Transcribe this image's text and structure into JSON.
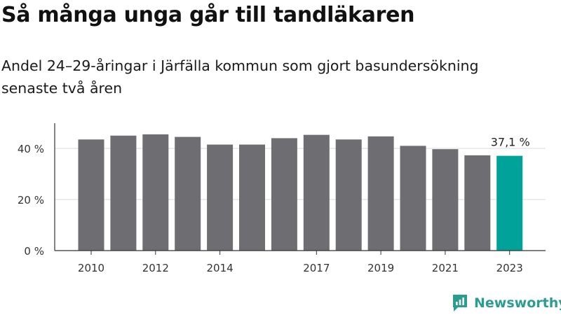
{
  "chart_data": {
    "type": "bar",
    "title": "Så många unga går till tandläkaren",
    "subtitle": "Andel 24–29-åringar i Järfälla kommun som gjort basundersökning senaste två åren",
    "categories": [
      "2010",
      "2011",
      "2012",
      "2013",
      "2014",
      "2015",
      "2016",
      "2017",
      "2018",
      "2019",
      "2020",
      "2021",
      "2022",
      "2023"
    ],
    "x_tick_labels": [
      "2010",
      "",
      "2012",
      "",
      "2014",
      "",
      "",
      "2017",
      "",
      "2019",
      "",
      "2021",
      "",
      "2023"
    ],
    "values": [
      43.5,
      45.0,
      45.5,
      44.5,
      41.5,
      41.5,
      44.0,
      45.3,
      43.5,
      44.7,
      41.0,
      39.7,
      37.3,
      37.1
    ],
    "ylim": [
      0,
      50
    ],
    "yticks": [
      0,
      20,
      40
    ],
    "ytick_labels": [
      "0 %",
      "20 %",
      "40 %"
    ],
    "annotation": "37,1 %",
    "grid": true,
    "colors": {
      "default": "#6e6d72",
      "highlight": "#00a29a",
      "grid": "#d9d9d9",
      "axis": "#333333"
    }
  },
  "brand": {
    "name": "Newsworthy",
    "icon": "newsworthy-logo-icon",
    "color": "#2a9d8f"
  }
}
